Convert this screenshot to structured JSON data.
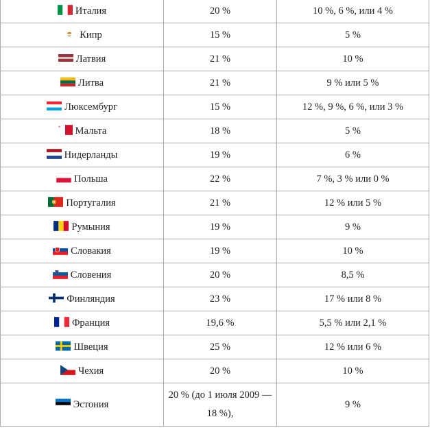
{
  "rows": [
    {
      "country": "Италия",
      "flag": "italy-flag",
      "standard_rate": "20 %",
      "reduced_rates": "10 %, 6 %, или 4 %"
    },
    {
      "country": "Кипр",
      "flag": "cyprus-flag",
      "standard_rate": "15 %",
      "reduced_rates": "5 %"
    },
    {
      "country": "Латвия",
      "flag": "latvia-flag",
      "standard_rate": "21 %",
      "reduced_rates": "10 %"
    },
    {
      "country": "Литва",
      "flag": "lithuania-flag",
      "standard_rate": "21 %",
      "reduced_rates": "9 % или 5 %"
    },
    {
      "country": "Люксембург",
      "flag": "luxembourg-flag",
      "standard_rate": "15 %",
      "reduced_rates": "12 %, 9 %, 6 %, или 3 %"
    },
    {
      "country": "Мальта",
      "flag": "malta-flag",
      "standard_rate": "18 %",
      "reduced_rates": "5 %"
    },
    {
      "country": "Нидерланды",
      "flag": "netherlands-flag",
      "standard_rate": "19 %",
      "reduced_rates": "6 %"
    },
    {
      "country": "Польша",
      "flag": "poland-flag",
      "standard_rate": "22 %",
      "reduced_rates": "7 %, 3 % или 0 %"
    },
    {
      "country": "Португалия",
      "flag": "portugal-flag",
      "standard_rate": "21 %",
      "reduced_rates": "12 % или 5 %"
    },
    {
      "country": "Румыния",
      "flag": "romania-flag",
      "standard_rate": "19 %",
      "reduced_rates": "9 %"
    },
    {
      "country": "Словакия",
      "flag": "slovakia-flag",
      "standard_rate": "19 %",
      "reduced_rates": "10 %"
    },
    {
      "country": "Словения",
      "flag": "slovenia-flag",
      "standard_rate": "20 %",
      "reduced_rates": "8,5 %"
    },
    {
      "country": "Финляндия",
      "flag": "finland-flag",
      "standard_rate": "23 %",
      "reduced_rates": "17 % или 8 %"
    },
    {
      "country": "Франция",
      "flag": "france-flag",
      "standard_rate": "19,6 %",
      "reduced_rates": "5,5 % или 2,1 %"
    },
    {
      "country": "Швеция",
      "flag": "sweden-flag",
      "standard_rate": "25 %",
      "reduced_rates": "12 % или 6 %"
    },
    {
      "country": "Чехия",
      "flag": "czech-flag",
      "standard_rate": "20 %",
      "reduced_rates": "10 %"
    },
    {
      "country": "Эстония",
      "flag": "estonia-flag",
      "standard_rate": "20 % (до 1 июля 2009 — 18 %),",
      "reduced_rates": "9 %"
    }
  ]
}
